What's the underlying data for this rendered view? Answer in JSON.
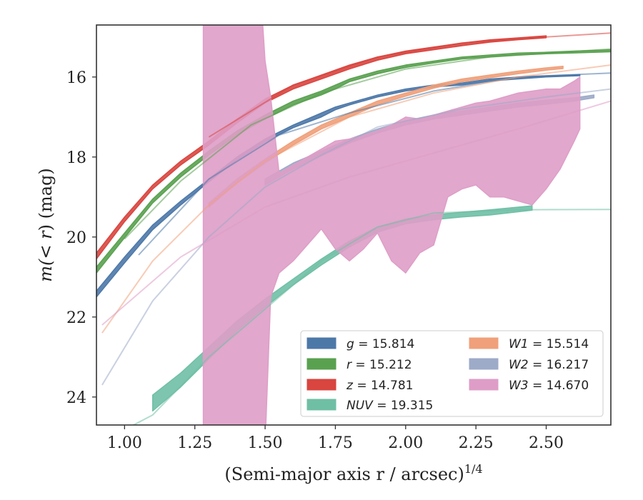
{
  "chart_data": {
    "type": "line",
    "title": "",
    "xlabel_text": "(Semi-major axis r / arcsec)",
    "xlabel_exp": "1/4",
    "ylabel_prefix": "m(",
    "ylabel_math": "< r",
    "ylabel_suffix": ") (mag)",
    "xlim": [
      0.9,
      2.73
    ],
    "ylim": [
      24.7,
      14.7
    ],
    "y_inverted": true,
    "grid": false,
    "legend_position": "lower-right",
    "x_ticks": [
      1.0,
      1.25,
      1.5,
      1.75,
      2.0,
      2.25,
      2.5
    ],
    "x_tick_labels": [
      "1.00",
      "1.25",
      "1.50",
      "1.75",
      "2.00",
      "2.25",
      "2.50"
    ],
    "y_ticks": [
      16,
      18,
      20,
      22,
      24
    ],
    "y_tick_labels": [
      "16",
      "18",
      "20",
      "22",
      "24"
    ],
    "series": [
      {
        "name": "g = 15.814",
        "legend_band": "g",
        "legend_value": "= 15.814",
        "color": "#4c78a8",
        "extrap_x": [
          1.05,
          1.3,
          1.55,
          1.8,
          2.1,
          2.4,
          2.73
        ],
        "extrap_y": [
          20.45,
          18.55,
          17.45,
          16.9,
          16.35,
          16.0,
          15.9
        ],
        "band_x": [
          0.9,
          1.0,
          1.1,
          1.2,
          1.3,
          1.4,
          1.5,
          1.6,
          1.7,
          1.75,
          1.8,
          1.9,
          2.0,
          2.1,
          2.2,
          2.3,
          2.4,
          2.5,
          2.62
        ],
        "band_upper": [
          21.35,
          20.5,
          19.7,
          19.1,
          18.55,
          18.0,
          17.55,
          17.2,
          16.9,
          16.75,
          16.65,
          16.45,
          16.3,
          16.2,
          16.15,
          16.05,
          16.0,
          15.97,
          15.94
        ],
        "band_lower": [
          21.5,
          20.65,
          19.82,
          19.2,
          18.62,
          18.07,
          17.62,
          17.27,
          17.0,
          16.82,
          16.7,
          16.5,
          16.35,
          16.25,
          16.2,
          16.1,
          16.05,
          16.0,
          15.97
        ]
      },
      {
        "name": "r = 15.212",
        "legend_band": "r",
        "legend_value": "= 15.212",
        "color": "#59a14f",
        "extrap_x": [
          1.0,
          1.2,
          1.45,
          1.7,
          2.0,
          2.3,
          2.73
        ],
        "extrap_y": [
          20.05,
          18.6,
          17.2,
          16.4,
          15.8,
          15.5,
          15.3
        ],
        "band_x": [
          0.9,
          1.0,
          1.1,
          1.2,
          1.3,
          1.4,
          1.5,
          1.6,
          1.7,
          1.75,
          1.8,
          1.9,
          2.0,
          2.1,
          2.2,
          2.3,
          2.4,
          2.5,
          2.6,
          2.73
        ],
        "band_upper": [
          20.75,
          19.9,
          19.05,
          18.4,
          17.85,
          17.35,
          16.95,
          16.6,
          16.35,
          16.2,
          16.05,
          15.85,
          15.7,
          15.6,
          15.5,
          15.45,
          15.4,
          15.38,
          15.35,
          15.32
        ],
        "band_lower": [
          20.9,
          20.02,
          19.15,
          18.5,
          17.95,
          17.45,
          17.05,
          16.7,
          16.45,
          16.3,
          16.12,
          15.92,
          15.76,
          15.65,
          15.55,
          15.5,
          15.45,
          15.42,
          15.4,
          15.37
        ]
      },
      {
        "name": "z = 14.781",
        "legend_band": "z",
        "legend_value": "= 14.781",
        "color": "#d9453f",
        "extrap_x": [
          1.3,
          1.6,
          1.9,
          2.2,
          2.5,
          2.73
        ],
        "extrap_y": [
          17.5,
          16.2,
          15.5,
          15.15,
          15.0,
          14.9
        ],
        "band_x": [
          0.9,
          1.0,
          1.1,
          1.2,
          1.3,
          1.4,
          1.5,
          1.6,
          1.7,
          1.8,
          1.9,
          2.0,
          2.1,
          2.2,
          2.3,
          2.4,
          2.5
        ],
        "band_upper": [
          20.4,
          19.5,
          18.7,
          18.1,
          17.6,
          17.05,
          16.55,
          16.2,
          15.95,
          15.7,
          15.5,
          15.35,
          15.25,
          15.15,
          15.07,
          15.02,
          14.97
        ],
        "band_lower": [
          20.55,
          19.62,
          18.8,
          18.2,
          17.7,
          17.15,
          16.65,
          16.3,
          16.05,
          15.8,
          15.58,
          15.42,
          15.32,
          15.22,
          15.13,
          15.07,
          15.02
        ]
      },
      {
        "name": "NUV = 19.315",
        "legend_band": "NUV",
        "legend_value": "= 19.315",
        "color": "#6fbfa5",
        "extrap_x": [
          0.95,
          1.1,
          1.3,
          1.5,
          1.7,
          1.9,
          2.1,
          2.4,
          2.73
        ],
        "extrap_y": [
          25.0,
          24.45,
          23.0,
          21.8,
          20.6,
          19.75,
          19.4,
          19.32,
          19.31
        ],
        "band_x": [
          1.1,
          1.2,
          1.3,
          1.4,
          1.5,
          1.6,
          1.7,
          1.8,
          1.9,
          2.0,
          2.1,
          2.2,
          2.3,
          2.45
        ],
        "band_upper": [
          23.95,
          23.4,
          22.75,
          22.1,
          21.55,
          21.05,
          20.55,
          20.1,
          19.75,
          19.55,
          19.45,
          19.38,
          19.32,
          19.22
        ],
        "band_lower": [
          24.35,
          23.75,
          23.05,
          22.35,
          21.75,
          21.2,
          20.7,
          20.25,
          19.88,
          19.67,
          19.57,
          19.5,
          19.45,
          19.33
        ]
      },
      {
        "name": "W1 = 15.514",
        "legend_band": "W1",
        "legend_value": "= 15.514",
        "color": "#f0a07a",
        "extrap_x": [
          0.92,
          1.1,
          1.3,
          1.5,
          1.8,
          2.1,
          2.4,
          2.73
        ],
        "extrap_y": [
          22.4,
          20.6,
          19.2,
          18.1,
          17.0,
          16.4,
          16.0,
          15.7
        ],
        "band_x": [
          1.3,
          1.4,
          1.5,
          1.6,
          1.7,
          1.8,
          1.9,
          2.0,
          2.1,
          2.2,
          2.3,
          2.4,
          2.5,
          2.56
        ],
        "band_upper": [
          19.15,
          18.55,
          18.05,
          17.6,
          17.2,
          16.9,
          16.6,
          16.4,
          16.2,
          16.05,
          15.95,
          15.85,
          15.77,
          15.73
        ],
        "band_lower": [
          19.25,
          18.65,
          18.15,
          17.7,
          17.3,
          17.0,
          16.7,
          16.48,
          16.28,
          16.12,
          16.02,
          15.92,
          15.83,
          15.79
        ]
      },
      {
        "name": "W2 = 16.217",
        "legend_band": "W2",
        "legend_value": "= 16.217",
        "color": "#9daac8",
        "extrap_x": [
          0.92,
          1.1,
          1.3,
          1.5,
          1.7,
          1.9,
          2.2,
          2.5,
          2.73
        ],
        "extrap_y": [
          23.7,
          21.6,
          20.0,
          18.75,
          17.95,
          17.25,
          16.8,
          16.5,
          16.3
        ],
        "band_x": [
          1.5,
          1.6,
          1.7,
          1.8,
          1.9,
          2.0,
          2.1,
          2.2,
          2.3,
          2.4,
          2.5,
          2.6,
          2.67
        ],
        "band_upper": [
          18.55,
          18.15,
          17.85,
          17.55,
          17.3,
          17.1,
          16.95,
          16.85,
          16.75,
          16.65,
          16.58,
          16.52,
          16.45
        ],
        "band_lower": [
          18.7,
          18.3,
          17.97,
          17.65,
          17.4,
          17.2,
          17.05,
          16.95,
          16.85,
          16.75,
          16.68,
          16.6,
          16.52
        ]
      },
      {
        "name": "W3 = 14.670",
        "legend_band": "W3",
        "legend_value": "= 14.670",
        "color": "#de9dc7",
        "extrap_x": [
          0.92,
          1.2,
          1.5,
          1.8,
          2.1,
          2.4,
          2.73
        ],
        "extrap_y": [
          22.2,
          20.5,
          19.25,
          18.5,
          17.9,
          17.3,
          16.6
        ],
        "band_x": [
          1.28,
          1.29,
          1.3,
          1.4,
          1.49,
          1.5,
          1.52,
          1.55,
          1.6,
          1.65,
          1.7,
          1.75,
          1.8,
          1.85,
          1.9,
          1.95,
          2.0,
          2.05,
          2.1,
          2.15,
          2.2,
          2.25,
          2.3,
          2.35,
          2.4,
          2.45,
          2.5,
          2.55,
          2.6,
          2.62
        ],
        "band_upper": [
          14.5,
          14.5,
          14.5,
          14.5,
          14.5,
          15.6,
          16.5,
          18.4,
          18.2,
          18.0,
          17.8,
          17.6,
          17.55,
          17.45,
          17.35,
          17.2,
          17.0,
          17.05,
          16.95,
          16.85,
          16.75,
          16.65,
          16.6,
          16.5,
          16.4,
          16.35,
          16.3,
          16.3,
          16.1,
          16.0
        ],
        "band_lower": [
          25.2,
          25.2,
          25.2,
          25.2,
          25.2,
          25.2,
          21.5,
          20.9,
          20.6,
          20.2,
          19.8,
          20.3,
          20.6,
          20.3,
          19.9,
          20.6,
          20.9,
          20.4,
          20.2,
          19.0,
          18.8,
          18.7,
          19.0,
          19.0,
          19.1,
          19.2,
          18.8,
          18.3,
          17.6,
          17.3
        ]
      }
    ]
  }
}
